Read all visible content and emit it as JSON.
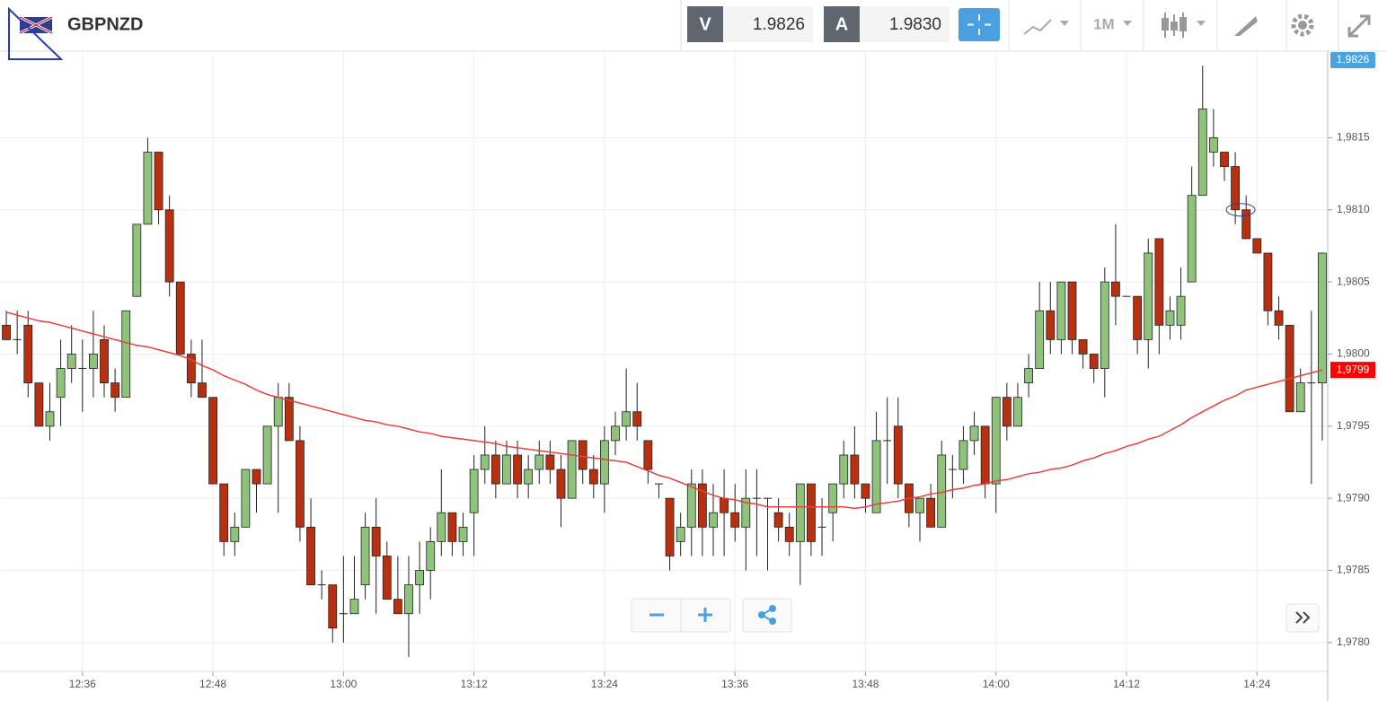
{
  "header": {
    "symbol": "GBPNZD",
    "bid_label": "V",
    "bid": "1.9826",
    "ask_label": "A",
    "ask": "1.9830",
    "interval": "1M"
  },
  "chart_data": {
    "type": "candlestick",
    "categories": [
      null,
      null,
      null,
      null,
      null,
      null,
      null,
      "12:36",
      null,
      null,
      null,
      null,
      null,
      null,
      null,
      null,
      null,
      null,
      null,
      "12:48",
      null,
      null,
      null,
      null,
      null,
      null,
      null,
      null,
      null,
      null,
      null,
      "13:00",
      null,
      null,
      null,
      null,
      null,
      null,
      null,
      null,
      null,
      null,
      null,
      "13:12",
      null,
      null,
      null,
      null,
      null,
      null,
      null,
      null,
      null,
      null,
      null,
      "13:24",
      null,
      null,
      null,
      null,
      null,
      null,
      null,
      null,
      null,
      null,
      null,
      "13:36",
      null,
      null,
      null,
      null,
      null,
      null,
      null,
      null,
      null,
      null,
      null,
      "13:48",
      null,
      null,
      null,
      null,
      null,
      null,
      null,
      null,
      null,
      null,
      null,
      "14:00",
      null,
      null,
      null,
      null,
      null,
      null,
      null,
      null,
      null,
      null,
      null,
      "14:12",
      null,
      null,
      null,
      null,
      null,
      null,
      null,
      null,
      null,
      null,
      null,
      "14:24",
      null,
      null,
      null,
      null,
      null,
      null
    ],
    "open": [
      1.9802,
      1.9801,
      1.9802,
      1.9798,
      1.9795,
      1.9797,
      1.9799,
      1.9799,
      1.9799,
      1.9801,
      1.9798,
      1.9797,
      1.9804,
      1.9809,
      1.9814,
      1.981,
      1.9805,
      1.98,
      1.9798,
      1.9797,
      1.9791,
      1.9787,
      1.9788,
      1.9792,
      1.9791,
      1.9795,
      1.9797,
      1.9794,
      1.9788,
      1.9784,
      1.9784,
      1.9782,
      1.9782,
      1.9784,
      1.9788,
      1.9786,
      1.9783,
      1.9782,
      1.9784,
      1.9785,
      1.9787,
      1.9789,
      1.9787,
      1.9789,
      1.9792,
      1.9793,
      1.9791,
      1.9793,
      1.9791,
      1.9792,
      1.9793,
      1.9792,
      1.979,
      1.9794,
      1.9792,
      1.9791,
      1.9794,
      1.9795,
      1.9796,
      1.9794,
      1.9791,
      1.979,
      1.9787,
      1.9788,
      1.9791,
      1.9788,
      1.979,
      1.9789,
      1.9788,
      1.979,
      1.979,
      1.9789,
      1.9788,
      1.9787,
      1.9791,
      1.9788,
      1.9789,
      1.9791,
      1.9793,
      1.9791,
      1.9789,
      1.9794,
      1.9795,
      1.9791,
      1.9789,
      1.979,
      1.9788,
      1.9792,
      1.9792,
      1.9794,
      1.9795,
      1.9791,
      1.9797,
      1.9795,
      1.9798,
      1.9799,
      1.9803,
      1.9801,
      1.9805,
      1.9801,
      1.98,
      1.9799,
      1.9805,
      1.9804,
      1.9804,
      1.9801,
      1.9808,
      1.9802,
      1.9802,
      1.9805,
      1.9811,
      1.9814,
      1.9814,
      1.9813,
      1.981,
      1.9808,
      1.9807,
      1.9803,
      1.9802,
      1.9796,
      1.9798,
      1.9798
    ],
    "high": [
      1.9803,
      1.9803,
      1.9803,
      1.9798,
      1.9798,
      1.9801,
      1.9802,
      1.9801,
      1.9803,
      1.9802,
      1.9799,
      1.9803,
      1.9809,
      1.9815,
      1.9814,
      1.9811,
      1.9805,
      1.9801,
      1.9801,
      1.9797,
      1.9791,
      1.9789,
      1.9792,
      1.9792,
      1.9795,
      1.9798,
      1.9798,
      1.9795,
      1.979,
      1.9785,
      1.9784,
      1.9786,
      1.9786,
      1.9789,
      1.979,
      1.9787,
      1.9786,
      1.9786,
      1.9787,
      1.9788,
      1.9792,
      1.9789,
      1.9789,
      1.9793,
      1.9795,
      1.9794,
      1.9794,
      1.9794,
      1.9793,
      1.9794,
      1.9794,
      1.9793,
      1.9794,
      1.9794,
      1.9793,
      1.9795,
      1.9796,
      1.9799,
      1.9798,
      1.9794,
      1.9791,
      1.979,
      1.9789,
      1.9792,
      1.9792,
      1.9791,
      1.9792,
      1.9791,
      1.9792,
      1.9792,
      1.979,
      1.979,
      1.9789,
      1.9791,
      1.9791,
      1.979,
      1.9791,
      1.9794,
      1.9795,
      1.9791,
      1.9796,
      1.9797,
      1.9797,
      1.9791,
      1.979,
      1.9791,
      1.9794,
      1.9793,
      1.9795,
      1.9796,
      1.9795,
      1.9797,
      1.9798,
      1.9798,
      1.98,
      1.9805,
      1.9805,
      1.9805,
      1.9805,
      1.9801,
      1.98,
      1.9806,
      1.9809,
      1.9804,
      1.9804,
      1.9808,
      1.9808,
      1.9804,
      1.9806,
      1.9813,
      1.982,
      1.9817,
      1.9814,
      1.9814,
      1.9811,
      1.9808,
      1.9807,
      1.9804,
      1.9802,
      1.9799,
      1.9803,
      1.9807
    ],
    "low": [
      1.9801,
      1.98,
      1.9797,
      1.9795,
      1.9794,
      1.9795,
      1.9798,
      1.9796,
      1.9797,
      1.9797,
      1.9796,
      1.9797,
      1.9804,
      1.9809,
      1.9809,
      1.9804,
      1.98,
      1.9797,
      1.9797,
      1.9791,
      1.9786,
      1.9786,
      1.9788,
      1.9789,
      1.9791,
      1.9789,
      1.9794,
      1.9787,
      1.9784,
      1.9783,
      1.978,
      1.978,
      1.9782,
      1.9783,
      1.9782,
      1.9783,
      1.9782,
      1.9779,
      1.9782,
      1.9783,
      1.9786,
      1.9786,
      1.9786,
      1.9786,
      1.9791,
      1.979,
      1.9791,
      1.979,
      1.979,
      1.9791,
      1.9791,
      1.9788,
      1.979,
      1.9791,
      1.979,
      1.9789,
      1.9793,
      1.9794,
      1.9794,
      1.9791,
      1.979,
      1.9785,
      1.9786,
      1.9786,
      1.9786,
      1.9786,
      1.9786,
      1.9787,
      1.9785,
      1.9786,
      1.9785,
      1.9787,
      1.9786,
      1.9784,
      1.9786,
      1.9786,
      1.9787,
      1.979,
      1.979,
      1.9789,
      1.9789,
      1.9791,
      1.979,
      1.9788,
      1.9787,
      1.9788,
      1.9788,
      1.979,
      1.9791,
      1.9793,
      1.979,
      1.9789,
      1.9794,
      1.9795,
      1.9797,
      1.9799,
      1.98,
      1.98,
      1.98,
      1.9799,
      1.9798,
      1.9797,
      1.9802,
      1.9804,
      1.98,
      1.9799,
      1.98,
      1.9801,
      1.9801,
      1.9805,
      1.9811,
      1.9813,
      1.9812,
      1.9809,
      1.9808,
      1.9807,
      1.9802,
      1.9801,
      1.9796,
      1.9796,
      1.9791,
      1.9794
    ],
    "close": [
      1.9801,
      1.9801,
      1.9798,
      1.9795,
      1.9796,
      1.9799,
      1.98,
      1.9799,
      1.98,
      1.9798,
      1.9797,
      1.9803,
      1.9809,
      1.9814,
      1.981,
      1.9805,
      1.98,
      1.9798,
      1.9797,
      1.9791,
      1.9787,
      1.9788,
      1.9792,
      1.9791,
      1.9795,
      1.9797,
      1.9794,
      1.9788,
      1.9784,
      1.9784,
      1.9781,
      1.9782,
      1.9783,
      1.9788,
      1.9786,
      1.9783,
      1.9782,
      1.9784,
      1.9785,
      1.9787,
      1.9789,
      1.9787,
      1.9788,
      1.9792,
      1.9793,
      1.9791,
      1.9793,
      1.9791,
      1.9792,
      1.9793,
      1.9792,
      1.979,
      1.9794,
      1.9792,
      1.9791,
      1.9794,
      1.9795,
      1.9796,
      1.9795,
      1.9792,
      1.9791,
      1.9786,
      1.9788,
      1.9791,
      1.9788,
      1.9789,
      1.9789,
      1.9788,
      1.979,
      1.979,
      1.979,
      1.9788,
      1.9787,
      1.9791,
      1.9787,
      1.9788,
      1.9791,
      1.9793,
      1.9791,
      1.979,
      1.9794,
      1.9794,
      1.9791,
      1.9789,
      1.979,
      1.9788,
      1.9793,
      1.9792,
      1.9794,
      1.9795,
      1.9791,
      1.9797,
      1.9795,
      1.9797,
      1.9799,
      1.9803,
      1.9801,
      1.9805,
      1.9801,
      1.98,
      1.9799,
      1.9805,
      1.9804,
      1.9804,
      1.9801,
      1.9807,
      1.9802,
      1.9803,
      1.9804,
      1.9811,
      1.9817,
      1.9815,
      1.9813,
      1.981,
      1.9808,
      1.9807,
      1.9803,
      1.9802,
      1.9796,
      1.9798,
      1.9798,
      1.9807
    ],
    "up_color": "#8fc27a",
    "down_color": "#b8300f",
    "ma": {
      "color": "#e8403a",
      "values": [
        1.98029,
        1.98027,
        1.98025,
        1.98023,
        1.98022,
        1.9802,
        1.98018,
        1.98016,
        1.98014,
        1.98012,
        1.9801,
        1.98008,
        1.98006,
        1.98005,
        1.98003,
        1.98001,
        1.97999,
        1.97996,
        1.97992,
        1.97989,
        1.97985,
        1.97982,
        1.97979,
        1.97975,
        1.97972,
        1.9797,
        1.97968,
        1.97966,
        1.97964,
        1.97962,
        1.9796,
        1.97958,
        1.97956,
        1.97954,
        1.97953,
        1.97951,
        1.9795,
        1.97948,
        1.97946,
        1.97945,
        1.97943,
        1.97942,
        1.97941,
        1.9794,
        1.97939,
        1.97938,
        1.97936,
        1.97935,
        1.97934,
        1.97933,
        1.97932,
        1.97931,
        1.9793,
        1.97929,
        1.97928,
        1.97927,
        1.97926,
        1.97925,
        1.97922,
        1.97919,
        1.97916,
        1.97914,
        1.97911,
        1.97908,
        1.97905,
        1.97902,
        1.979,
        1.97899,
        1.97897,
        1.97896,
        1.97894,
        1.97894,
        1.97894,
        1.97894,
        1.97894,
        1.97894,
        1.97894,
        1.97894,
        1.97893,
        1.97894,
        1.97896,
        1.97897,
        1.97898,
        1.979,
        1.97901,
        1.97903,
        1.97904,
        1.97906,
        1.97907,
        1.97909,
        1.9791,
        1.97912,
        1.97913,
        1.97915,
        1.97917,
        1.97918,
        1.9792,
        1.97921,
        1.97923,
        1.97926,
        1.97928,
        1.97931,
        1.97933,
        1.97936,
        1.97938,
        1.97941,
        1.97943,
        1.97947,
        1.97951,
        1.97956,
        1.9796,
        1.97964,
        1.97968,
        1.97971,
        1.97975,
        1.97977,
        1.97979,
        1.97981,
        1.97983,
        1.97985,
        1.97987,
        1.97989
      ],
      "tag_label": "1,9799"
    },
    "price_tag": {
      "value": 1.9826,
      "label": "1,9826",
      "color": "#4aa3df"
    },
    "ylim": [
      1.9778,
      1.9821
    ],
    "yticks": [
      {
        "value": 1.978,
        "label": "1,9780"
      },
      {
        "value": 1.9785,
        "label": "1,9785"
      },
      {
        "value": 1.979,
        "label": "1,9790"
      },
      {
        "value": 1.9795,
        "label": "1,9795"
      },
      {
        "value": 1.98,
        "label": "1,9800"
      },
      {
        "value": 1.9805,
        "label": "1,9805"
      },
      {
        "value": 1.981,
        "label": "1,9810"
      },
      {
        "value": 1.9815,
        "label": "1,9815"
      }
    ],
    "grid": true
  }
}
